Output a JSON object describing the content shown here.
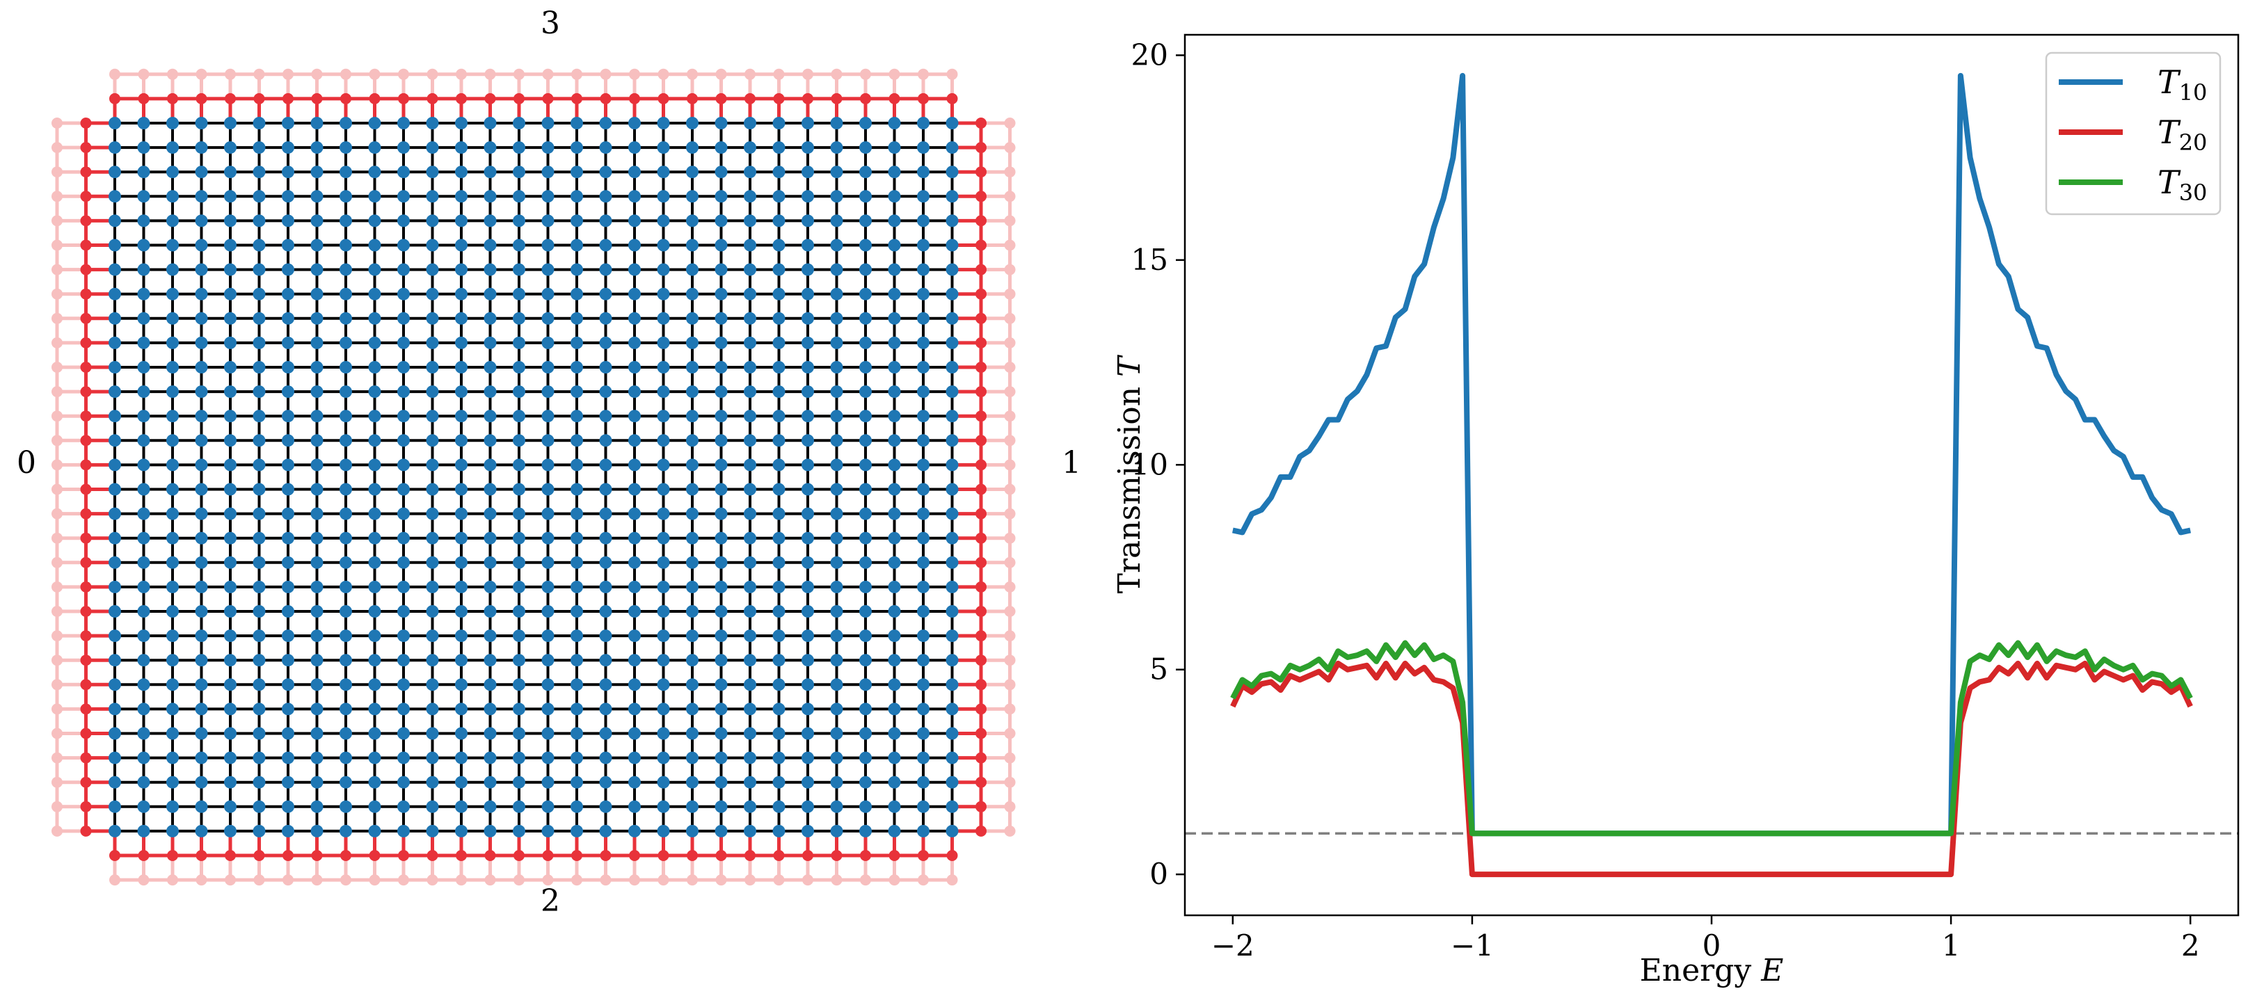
{
  "lattice": {
    "lead_labels": {
      "left": "0",
      "right": "1",
      "bottom": "2",
      "top": "3"
    },
    "columns": 30,
    "rows": 30,
    "colors": {
      "scattering_site": "#1f77b4",
      "bond": "#000000",
      "lead_interface": "#e8323a",
      "lead_outer": "#f7bfbf",
      "lead_label": "#0000ff"
    }
  },
  "chart_data": {
    "type": "line",
    "xlabel": "Energy $E$",
    "ylabel": "Transmission $T$",
    "xlim": [
      -2.2,
      2.2
    ],
    "ylim": [
      -1,
      20.5
    ],
    "xticks": [
      -2,
      -1,
      0,
      1,
      2
    ],
    "xtick_labels": [
      "−2",
      "−1",
      "0",
      "1",
      "2"
    ],
    "yticks": [
      0,
      5,
      10,
      15,
      20
    ],
    "ytick_labels": [
      "0",
      "5",
      "10",
      "15",
      "20"
    ],
    "legend_position": "top-right",
    "grid": false,
    "reference_line": {
      "y": 1,
      "style": "dashed",
      "color": "#808080"
    },
    "x": [
      -2.0,
      -1.96,
      -1.92,
      -1.88,
      -1.84,
      -1.8,
      -1.76,
      -1.72,
      -1.68,
      -1.64,
      -1.6,
      -1.56,
      -1.52,
      -1.48,
      -1.44,
      -1.4,
      -1.36,
      -1.32,
      -1.28,
      -1.24,
      -1.2,
      -1.16,
      -1.12,
      -1.08,
      -1.04,
      -1.0,
      0.0,
      1.0,
      1.04,
      1.08,
      1.12,
      1.16,
      1.2,
      1.24,
      1.28,
      1.32,
      1.36,
      1.4,
      1.44,
      1.48,
      1.52,
      1.56,
      1.6,
      1.64,
      1.68,
      1.72,
      1.76,
      1.8,
      1.84,
      1.88,
      1.92,
      1.96,
      2.0
    ],
    "series": [
      {
        "name": "T_{10}",
        "color": "#1f77b4",
        "values": [
          8.4,
          8.35,
          8.8,
          8.9,
          9.2,
          9.7,
          9.7,
          10.2,
          10.35,
          10.7,
          11.1,
          11.1,
          11.6,
          11.8,
          12.2,
          12.85,
          12.9,
          13.6,
          13.8,
          14.6,
          14.9,
          15.8,
          16.5,
          17.5,
          19.5,
          1.0,
          1.0,
          1.0,
          19.5,
          17.5,
          16.5,
          15.8,
          14.9,
          14.6,
          13.8,
          13.6,
          12.9,
          12.85,
          12.2,
          11.8,
          11.6,
          11.1,
          11.1,
          10.7,
          10.35,
          10.2,
          9.7,
          9.7,
          9.2,
          8.9,
          8.8,
          8.35,
          8.4
        ]
      },
      {
        "name": "T_{20}",
        "color": "#d62728",
        "values": [
          4.1,
          4.6,
          4.45,
          4.65,
          4.7,
          4.5,
          4.85,
          4.75,
          4.85,
          4.95,
          4.75,
          5.15,
          5.0,
          5.05,
          5.1,
          4.8,
          5.15,
          4.8,
          5.15,
          4.9,
          5.05,
          4.75,
          4.7,
          4.55,
          3.7,
          0.0,
          0.0,
          0.0,
          3.7,
          4.55,
          4.7,
          4.75,
          5.05,
          4.9,
          5.15,
          4.8,
          5.15,
          4.8,
          5.1,
          5.05,
          5.0,
          5.15,
          4.75,
          4.95,
          4.85,
          4.75,
          4.85,
          4.5,
          4.7,
          4.65,
          4.45,
          4.6,
          4.1
        ]
      },
      {
        "name": "T_{30}",
        "color": "#2ca02c",
        "values": [
          4.3,
          4.75,
          4.6,
          4.85,
          4.9,
          4.75,
          5.1,
          5.0,
          5.1,
          5.25,
          5.0,
          5.45,
          5.3,
          5.35,
          5.45,
          5.2,
          5.6,
          5.3,
          5.65,
          5.35,
          5.6,
          5.25,
          5.35,
          5.2,
          4.2,
          1.0,
          1.0,
          1.0,
          4.2,
          5.2,
          5.35,
          5.25,
          5.6,
          5.35,
          5.65,
          5.3,
          5.6,
          5.2,
          5.45,
          5.35,
          5.3,
          5.45,
          5.0,
          5.25,
          5.1,
          5.0,
          5.1,
          4.75,
          4.9,
          4.85,
          4.6,
          4.75,
          4.3
        ]
      }
    ]
  }
}
